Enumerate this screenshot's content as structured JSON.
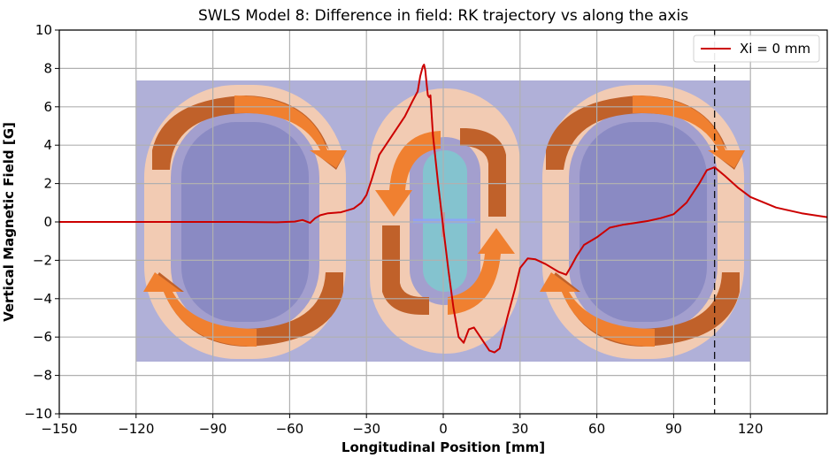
{
  "chart_data": {
    "type": "line",
    "title": "SWLS Model 8: Difference in field: RK trajectory vs along the axis",
    "xlabel": "Longitudinal Position [mm]",
    "ylabel": "Vertical Magnetic Field [G]",
    "xlim": [
      -150,
      150
    ],
    "ylim": [
      -10,
      10
    ],
    "xticks": [
      -150,
      -120,
      -90,
      -60,
      -30,
      0,
      30,
      60,
      90,
      120
    ],
    "yticks": [
      -10,
      -8,
      -6,
      -4,
      -2,
      0,
      2,
      4,
      6,
      8,
      10
    ],
    "xtick_labels": [
      "−150",
      "−120",
      "−90",
      "−60",
      "−30",
      "0",
      "30",
      "60",
      "90",
      "120"
    ],
    "ytick_labels": [
      "−10",
      "−8",
      "−6",
      "−4",
      "−2",
      "0",
      "2",
      "4",
      "6",
      "8",
      "10"
    ],
    "grid": true,
    "legend_position": "top-right",
    "vertical_marker_x": 106,
    "series": [
      {
        "name": "Xi = 0 mm",
        "color": "#cc0000",
        "x": [
          -150,
          -120,
          -100,
          -80,
          -65,
          -58,
          -55,
          -52,
          -50,
          -48,
          -45,
          -40,
          -35,
          -32,
          -30,
          -28,
          -25,
          -20,
          -15,
          -12,
          -10,
          -9,
          -8,
          -7.5,
          -7,
          -6.5,
          -6,
          -5.5,
          -5,
          -4,
          -2,
          0,
          2,
          4,
          6,
          8,
          10,
          12,
          15,
          18,
          20,
          22,
          25,
          28,
          30,
          33,
          36,
          40,
          45,
          48,
          50,
          52,
          55,
          60,
          65,
          70,
          75,
          80,
          85,
          90,
          95,
          100,
          103,
          106,
          110,
          115,
          120,
          130,
          140,
          150
        ],
        "y": [
          0,
          0,
          0,
          0,
          -0.02,
          0.02,
          0.1,
          -0.05,
          0.2,
          0.35,
          0.45,
          0.5,
          0.7,
          1.0,
          1.4,
          2.2,
          3.5,
          4.5,
          5.5,
          6.3,
          6.8,
          7.6,
          8.1,
          8.2,
          7.9,
          7.2,
          6.6,
          6.5,
          6.6,
          4.5,
          2.0,
          -0.3,
          -2.5,
          -4.5,
          -6.0,
          -6.3,
          -5.6,
          -5.5,
          -6.1,
          -6.7,
          -6.8,
          -6.6,
          -5.0,
          -3.5,
          -2.4,
          -1.9,
          -1.95,
          -2.2,
          -2.6,
          -2.75,
          -2.3,
          -1.8,
          -1.2,
          -0.8,
          -0.3,
          -0.15,
          -0.05,
          0.05,
          0.2,
          0.4,
          1.0,
          2.0,
          2.7,
          2.85,
          2.4,
          1.8,
          1.3,
          0.75,
          0.45,
          0.25
        ]
      }
    ]
  }
}
